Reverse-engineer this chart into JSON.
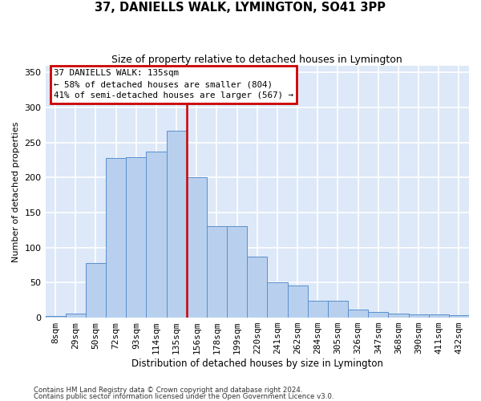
{
  "title": "37, DANIELLS WALK, LYMINGTON, SO41 3PP",
  "subtitle": "Size of property relative to detached houses in Lymington",
  "xlabel": "Distribution of detached houses by size in Lymington",
  "ylabel": "Number of detached properties",
  "categories": [
    "8sqm",
    "29sqm",
    "50sqm",
    "72sqm",
    "93sqm",
    "114sqm",
    "135sqm",
    "156sqm",
    "178sqm",
    "199sqm",
    "220sqm",
    "241sqm",
    "262sqm",
    "284sqm",
    "305sqm",
    "326sqm",
    "347sqm",
    "368sqm",
    "390sqm",
    "411sqm",
    "432sqm"
  ],
  "values": [
    2,
    6,
    78,
    228,
    229,
    237,
    267,
    200,
    131,
    131,
    87,
    50,
    46,
    24,
    24,
    11,
    8,
    6,
    5,
    5,
    3
  ],
  "bar_color": "#b8d0ee",
  "bar_edgecolor": "#5a8fcc",
  "highlight_bar_index": 6,
  "highlight_line_color": "#cc0000",
  "annotation_line1": "37 DANIELLS WALK: 135sqm",
  "annotation_line2": "← 58% of detached houses are smaller (804)",
  "annotation_line3": "41% of semi-detached houses are larger (567) →",
  "annotation_box_facecolor": "white",
  "annotation_box_edgecolor": "#cc0000",
  "ylim_max": 360,
  "yticks": [
    0,
    50,
    100,
    150,
    200,
    250,
    300,
    350
  ],
  "plot_bg_color": "#dde8f8",
  "grid_color": "#ffffff",
  "footer1": "Contains HM Land Registry data © Crown copyright and database right 2024.",
  "footer2": "Contains public sector information licensed under the Open Government Licence v3.0."
}
